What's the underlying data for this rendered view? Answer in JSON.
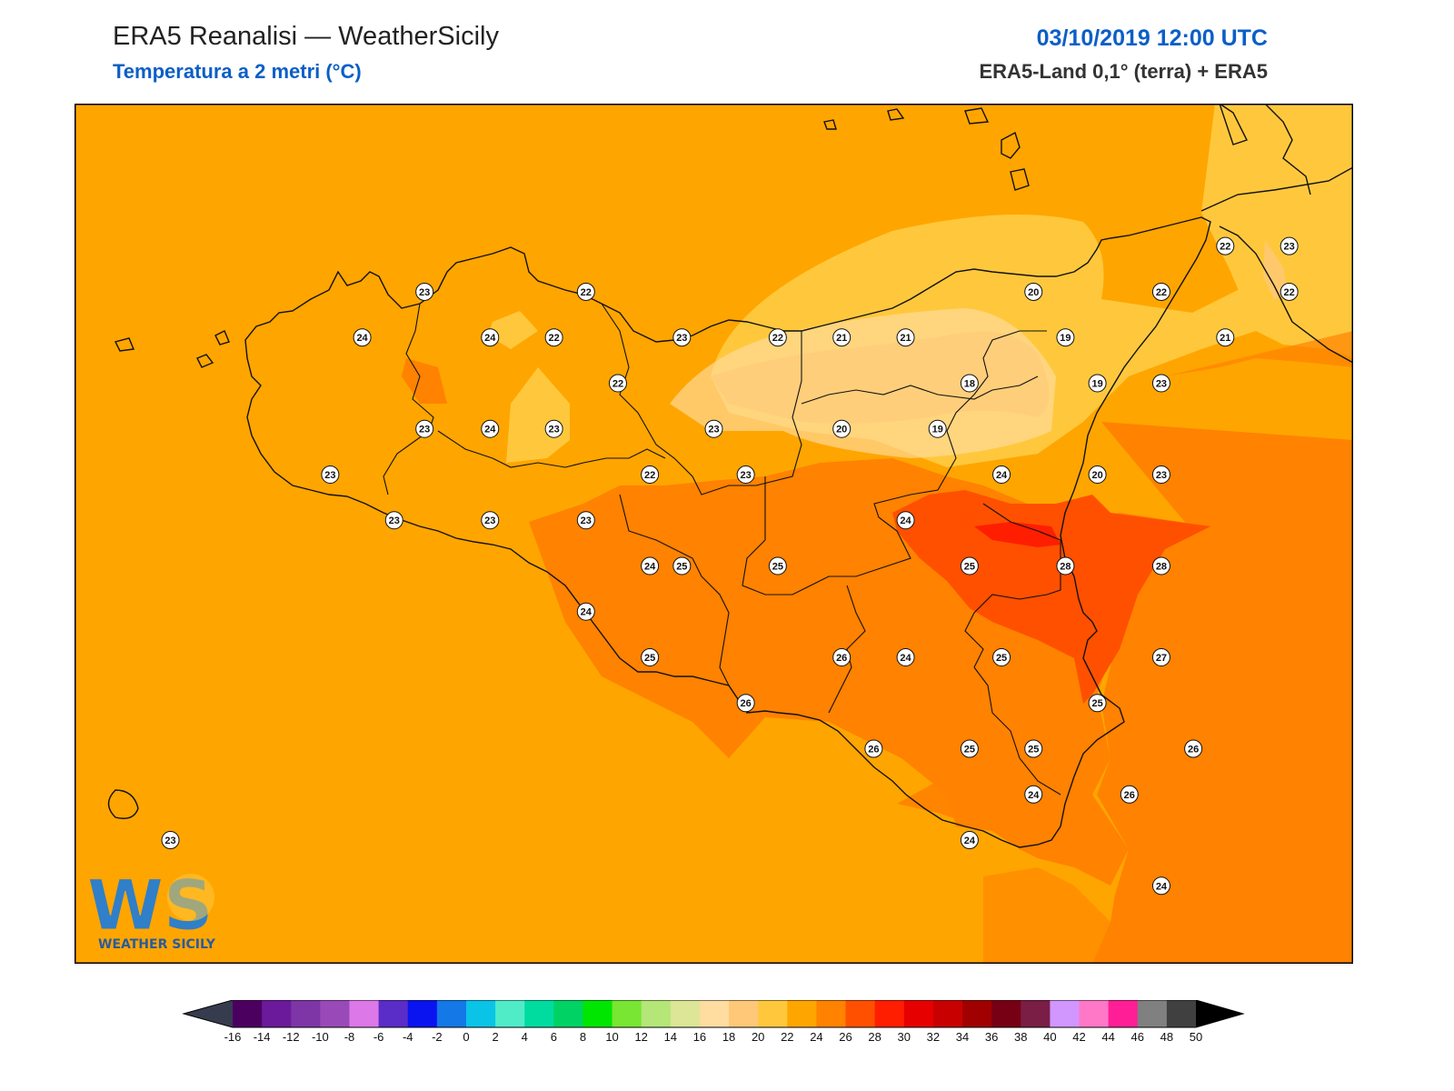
{
  "header": {
    "title": "ERA5 Reanalisi — WeatherSicily",
    "subtitle": "Temperatura a 2 metri (°C)",
    "datetime": "03/10/2019 12:00 UTC",
    "source": "ERA5-Land 0,1° (terra) + ERA5"
  },
  "logo": {
    "letters": "WS",
    "name": "WEATHER SICILY"
  },
  "colorbar": {
    "unit": "°C",
    "ticks": [
      "-16",
      "-14",
      "-12",
      "-10",
      "-8",
      "-6",
      "-4",
      "-2",
      "0",
      "2",
      "4",
      "6",
      "8",
      "10",
      "12",
      "14",
      "16",
      "18",
      "20",
      "22",
      "24",
      "26",
      "28",
      "30",
      "32",
      "34",
      "36",
      "38",
      "40",
      "42",
      "44",
      "46",
      "48",
      "50"
    ],
    "colors": [
      "#4b0060",
      "#6a1a9a",
      "#7e35a6",
      "#9a4ab8",
      "#dc78e8",
      "#5a2cc8",
      "#0a14f0",
      "#1478e6",
      "#0ac4e8",
      "#50ecc8",
      "#00dca0",
      "#00d264",
      "#00e600",
      "#78e632",
      "#b4e678",
      "#dce696",
      "#ffdca0",
      "#ffc878",
      "#ffc83c",
      "#ffa500",
      "#ff8200",
      "#ff5000",
      "#ff1e00",
      "#e60000",
      "#c80000",
      "#a00000",
      "#780014",
      "#7a1e46",
      "#d296ff",
      "#ff78c8",
      "#ff1e96",
      "#808080",
      "#404040"
    ],
    "under_color": "#363b4e",
    "over_color": "#000000"
  },
  "temperature_labels": [
    {
      "value": "23",
      "lon": 12.54,
      "lat": 38.15
    },
    {
      "value": "24",
      "lon": 12.15,
      "lat": 37.98
    },
    {
      "value": "24",
      "lon": 12.95,
      "lat": 37.98
    },
    {
      "value": "22",
      "lon": 13.35,
      "lat": 37.98
    },
    {
      "value": "22",
      "lon": 13.55,
      "lat": 38.15
    },
    {
      "value": "23",
      "lon": 14.15,
      "lat": 37.98
    },
    {
      "value": "22",
      "lon": 14.75,
      "lat": 37.98
    },
    {
      "value": "21",
      "lon": 15.15,
      "lat": 37.98
    },
    {
      "value": "21",
      "lon": 15.55,
      "lat": 37.98
    },
    {
      "value": "20",
      "lon": 16.35,
      "lat": 38.15
    },
    {
      "value": "19",
      "lon": 16.55,
      "lat": 37.98
    },
    {
      "value": "22",
      "lon": 17.15,
      "lat": 38.15
    },
    {
      "value": "22",
      "lon": 17.55,
      "lat": 38.32
    },
    {
      "value": "23",
      "lon": 17.95,
      "lat": 38.32
    },
    {
      "value": "22",
      "lon": 17.95,
      "lat": 38.15
    },
    {
      "value": "21",
      "lon": 17.55,
      "lat": 37.98
    },
    {
      "value": "22",
      "lon": 13.75,
      "lat": 37.81
    },
    {
      "value": "18",
      "lon": 15.95,
      "lat": 37.81
    },
    {
      "value": "19",
      "lon": 16.75,
      "lat": 37.81
    },
    {
      "value": "23",
      "lon": 17.15,
      "lat": 37.81
    },
    {
      "value": "23",
      "lon": 12.54,
      "lat": 37.64
    },
    {
      "value": "24",
      "lon": 12.95,
      "lat": 37.64
    },
    {
      "value": "23",
      "lon": 13.35,
      "lat": 37.64
    },
    {
      "value": "23",
      "lon": 14.35,
      "lat": 37.64
    },
    {
      "value": "20",
      "lon": 15.15,
      "lat": 37.64
    },
    {
      "value": "19",
      "lon": 15.75,
      "lat": 37.64
    },
    {
      "value": "23",
      "lon": 11.95,
      "lat": 37.47
    },
    {
      "value": "22",
      "lon": 13.95,
      "lat": 37.47
    },
    {
      "value": "23",
      "lon": 14.55,
      "lat": 37.47
    },
    {
      "value": "24",
      "lon": 16.15,
      "lat": 37.47
    },
    {
      "value": "20",
      "lon": 16.75,
      "lat": 37.47
    },
    {
      "value": "23",
      "lon": 17.15,
      "lat": 37.47
    },
    {
      "value": "23",
      "lon": 12.35,
      "lat": 37.3
    },
    {
      "value": "23",
      "lon": 12.95,
      "lat": 37.3
    },
    {
      "value": "23",
      "lon": 13.55,
      "lat": 37.3
    },
    {
      "value": "24",
      "lon": 15.55,
      "lat": 37.3
    },
    {
      "value": "24",
      "lon": 13.95,
      "lat": 37.13
    },
    {
      "value": "25",
      "lon": 14.15,
      "lat": 37.13
    },
    {
      "value": "25",
      "lon": 14.75,
      "lat": 37.13
    },
    {
      "value": "25",
      "lon": 15.95,
      "lat": 37.13
    },
    {
      "value": "28",
      "lon": 16.55,
      "lat": 37.13
    },
    {
      "value": "28",
      "lon": 17.15,
      "lat": 37.13
    },
    {
      "value": "24",
      "lon": 13.55,
      "lat": 36.96
    },
    {
      "value": "25",
      "lon": 13.95,
      "lat": 36.79
    },
    {
      "value": "26",
      "lon": 15.15,
      "lat": 36.79
    },
    {
      "value": "24",
      "lon": 15.55,
      "lat": 36.79
    },
    {
      "value": "25",
      "lon": 16.15,
      "lat": 36.79
    },
    {
      "value": "27",
      "lon": 17.15,
      "lat": 36.79
    },
    {
      "value": "26",
      "lon": 14.55,
      "lat": 36.62
    },
    {
      "value": "25",
      "lon": 16.75,
      "lat": 36.62
    },
    {
      "value": "26",
      "lon": 15.35,
      "lat": 36.45
    },
    {
      "value": "25",
      "lon": 15.95,
      "lat": 36.45
    },
    {
      "value": "25",
      "lon": 16.35,
      "lat": 36.45
    },
    {
      "value": "26",
      "lon": 17.35,
      "lat": 36.45
    },
    {
      "value": "24",
      "lon": 16.35,
      "lat": 36.28
    },
    {
      "value": "26",
      "lon": 16.95,
      "lat": 36.28
    },
    {
      "value": "24",
      "lon": 15.95,
      "lat": 36.11
    },
    {
      "value": "24",
      "lon": 17.15,
      "lat": 35.94
    },
    {
      "value": "23",
      "lon": 10.95,
      "lat": 36.11
    }
  ]
}
